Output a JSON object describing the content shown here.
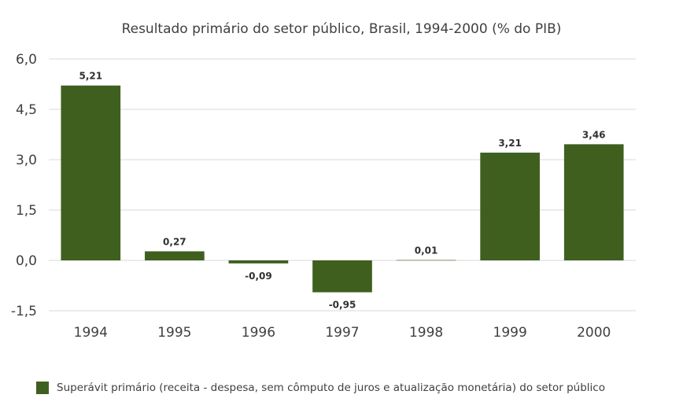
{
  "chart_data": {
    "type": "bar",
    "title": "Resultado primário do setor público, Brasil, 1994-2000 (% do PIB)",
    "categories": [
      "1994",
      "1995",
      "1996",
      "1997",
      "1998",
      "1999",
      "2000"
    ],
    "series": [
      {
        "name": "Superávit primário (receita - despesa, sem cômputo de juros e atualização monetária)  do setor público",
        "values": [
          5.21,
          0.27,
          -0.09,
          -0.95,
          0.01,
          3.21,
          3.46
        ],
        "value_labels": [
          "5,21",
          "0,27",
          "-0,09",
          "-0,95",
          "0,01",
          "3,21",
          "3,46"
        ],
        "color": "#3f5f1f"
      }
    ],
    "ylim": [
      -1.5,
      6.0
    ],
    "yticks": [
      6.0,
      4.5,
      3.0,
      1.5,
      0.0,
      -1.5
    ],
    "ytick_labels": [
      "6,0",
      "4,5",
      "3,0",
      "1,5",
      "0,0",
      "-1,5"
    ],
    "grid": true,
    "legend_position": "bottom"
  },
  "colors": {
    "bar": "#3f5f1f",
    "grid": "#d9d9d9",
    "text": "#404040"
  }
}
